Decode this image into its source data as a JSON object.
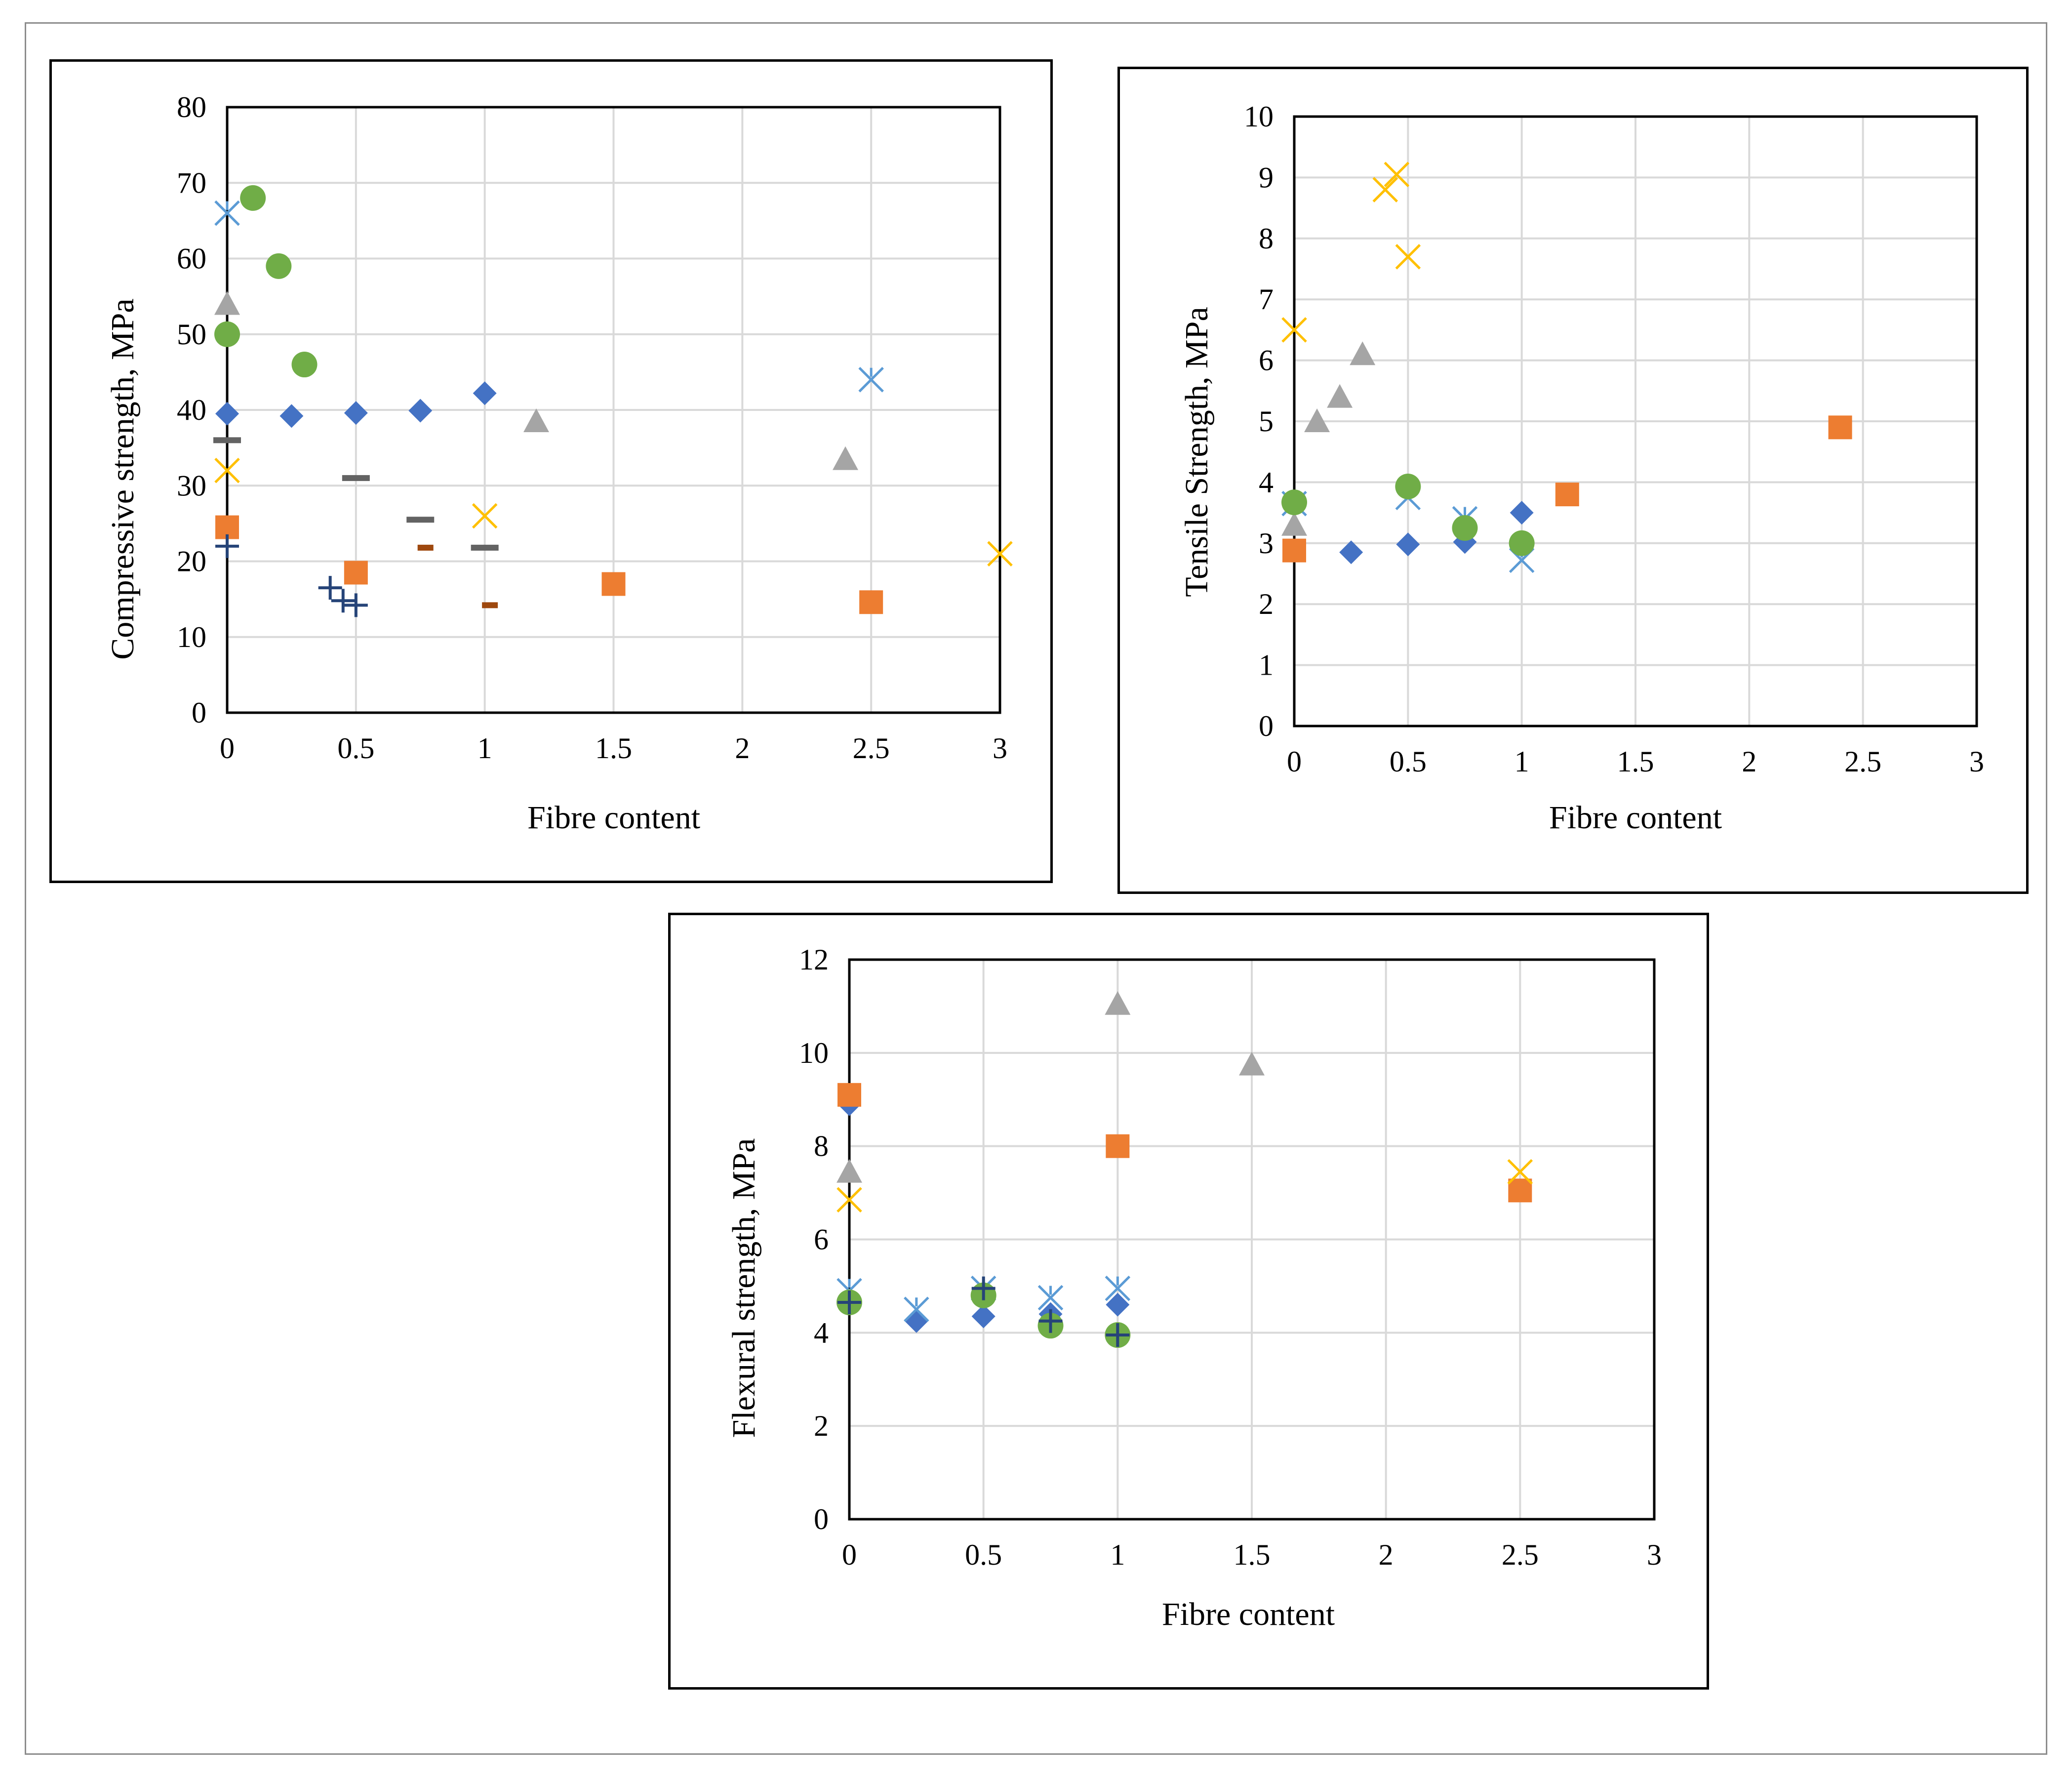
{
  "chart_data": [
    {
      "type": "scatter",
      "xlabel": "Fibre content",
      "ylabel": "Compressive strength, MPa",
      "xlim": [
        0,
        3
      ],
      "ylim": [
        0,
        80
      ],
      "x_ticks": [
        "0",
        "0.5",
        "1",
        "1.5",
        "2",
        "2.5",
        "3"
      ],
      "y_ticks": [
        "0",
        "10",
        "20",
        "30",
        "40",
        "50",
        "60",
        "70",
        "80"
      ],
      "grid": true,
      "series": [
        {
          "marker": "diamond",
          "color": "#4472C4",
          "points": [
            [
              0,
              39.5
            ],
            [
              0.25,
              39.2
            ],
            [
              0.5,
              39.6
            ],
            [
              0.75,
              39.9
            ],
            [
              1.0,
              42.2
            ]
          ]
        },
        {
          "marker": "square",
          "color": "#ED7D31",
          "points": [
            [
              0,
              24.5
            ],
            [
              0.5,
              18.5
            ],
            [
              1.5,
              17.0
            ],
            [
              2.5,
              14.6
            ]
          ]
        },
        {
          "marker": "triangle",
          "color": "#A5A5A5",
          "points": [
            [
              0,
              54.0
            ],
            [
              1.2,
              38.5
            ],
            [
              2.4,
              33.5
            ]
          ]
        },
        {
          "marker": "x",
          "color": "#FFC000",
          "points": [
            [
              0,
              32.0
            ],
            [
              1.0,
              26.0
            ],
            [
              3.0,
              21.0
            ]
          ]
        },
        {
          "marker": "star",
          "color": "#5B9BD5",
          "points": [
            [
              0,
              66.0
            ],
            [
              2.5,
              44.0
            ]
          ]
        },
        {
          "marker": "circle",
          "color": "#70AD47",
          "points": [
            [
              0,
              50.0
            ],
            [
              0.1,
              68.0
            ],
            [
              0.2,
              59.0
            ],
            [
              0.3,
              46.0
            ]
          ]
        },
        {
          "marker": "plus",
          "color": "#264478",
          "points": [
            [
              0,
              22.0
            ],
            [
              0.4,
              16.5
            ],
            [
              0.45,
              14.8
            ],
            [
              0.5,
              14.2
            ]
          ]
        },
        {
          "marker": "dash",
          "color": "#636363",
          "points": [
            [
              0,
              36.0
            ],
            [
              0.5,
              31.0
            ],
            [
              0.75,
              25.5
            ],
            [
              1.0,
              21.8
            ]
          ]
        },
        {
          "marker": "small-dash",
          "color": "#9E480E",
          "points": [
            [
              0.77,
              21.8
            ],
            [
              1.02,
              14.2
            ]
          ]
        }
      ]
    },
    {
      "type": "scatter",
      "xlabel": "Fibre content",
      "ylabel": "Tensile Strength, MPa",
      "xlim": [
        0,
        3
      ],
      "ylim": [
        0,
        10
      ],
      "x_ticks": [
        "0",
        "0.5",
        "1",
        "1.5",
        "2",
        "2.5",
        "3"
      ],
      "y_ticks": [
        "0",
        "1",
        "2",
        "3",
        "4",
        "5",
        "6",
        "7",
        "8",
        "9",
        "10"
      ],
      "grid": true,
      "series": [
        {
          "marker": "diamond",
          "color": "#4472C4",
          "points": [
            [
              0.25,
              2.85
            ],
            [
              0.5,
              2.98
            ],
            [
              0.75,
              3.02
            ],
            [
              1.0,
              3.5
            ]
          ]
        },
        {
          "marker": "square",
          "color": "#ED7D31",
          "points": [
            [
              0,
              2.88
            ],
            [
              1.2,
              3.8
            ],
            [
              2.4,
              4.9
            ]
          ]
        },
        {
          "marker": "triangle",
          "color": "#A5A5A5",
          "points": [
            [
              0,
              3.3
            ],
            [
              0.1,
              5.0
            ],
            [
              0.2,
              5.4
            ],
            [
              0.3,
              6.1
            ]
          ]
        },
        {
          "marker": "x",
          "color": "#FFC000",
          "points": [
            [
              0,
              6.5
            ],
            [
              0.4,
              8.8
            ],
            [
              0.45,
              9.05
            ],
            [
              0.5,
              7.7
            ]
          ]
        },
        {
          "marker": "star",
          "color": "#5B9BD5",
          "points": [
            [
              0,
              3.65
            ],
            [
              0.5,
              3.75
            ],
            [
              0.75,
              3.4
            ],
            [
              1.0,
              2.72
            ]
          ]
        },
        {
          "marker": "circle",
          "color": "#70AD47",
          "points": [
            [
              0,
              3.67
            ],
            [
              0.5,
              3.93
            ],
            [
              0.75,
              3.25
            ],
            [
              1.0,
              3.0
            ]
          ]
        }
      ]
    },
    {
      "type": "scatter",
      "xlabel": "Fibre content",
      "ylabel": "Flexural strength, MPa",
      "xlim": [
        0,
        3
      ],
      "ylim": [
        0,
        12
      ],
      "x_ticks": [
        "0",
        "0.5",
        "1",
        "1.5",
        "2",
        "2.5",
        "3"
      ],
      "y_ticks": [
        "0",
        "2",
        "4",
        "6",
        "8",
        "10",
        "12"
      ],
      "grid": true,
      "series": [
        {
          "marker": "diamond",
          "color": "#4472C4",
          "points": [
            [
              0,
              8.9
            ],
            [
              0.25,
              4.25
            ],
            [
              0.5,
              4.35
            ],
            [
              0.75,
              4.4
            ],
            [
              1.0,
              4.6
            ]
          ]
        },
        {
          "marker": "square",
          "color": "#ED7D31",
          "points": [
            [
              0,
              9.1
            ],
            [
              1.0,
              8.0
            ],
            [
              2.5,
              7.05
            ]
          ]
        },
        {
          "marker": "triangle",
          "color": "#A5A5A5",
          "points": [
            [
              0,
              7.45
            ],
            [
              1.0,
              11.05
            ],
            [
              1.5,
              9.75
            ]
          ]
        },
        {
          "marker": "x",
          "color": "#FFC000",
          "points": [
            [
              0,
              6.85
            ],
            [
              2.5,
              7.45
            ]
          ]
        },
        {
          "marker": "star",
          "color": "#5B9BD5",
          "points": [
            [
              0,
              4.9
            ],
            [
              0.25,
              4.5
            ],
            [
              0.5,
              4.95
            ],
            [
              0.75,
              4.75
            ],
            [
              1.0,
              4.95
            ]
          ]
        },
        {
          "marker": "circle",
          "color": "#70AD47",
          "points": [
            [
              0,
              4.65
            ],
            [
              0.5,
              4.8
            ],
            [
              0.75,
              4.15
            ],
            [
              1.0,
              3.95
            ]
          ]
        },
        {
          "marker": "plus",
          "color": "#264478",
          "points": [
            [
              0,
              4.65
            ],
            [
              0.5,
              4.95
            ],
            [
              0.75,
              4.25
            ],
            [
              1.0,
              3.95
            ]
          ]
        }
      ]
    }
  ]
}
